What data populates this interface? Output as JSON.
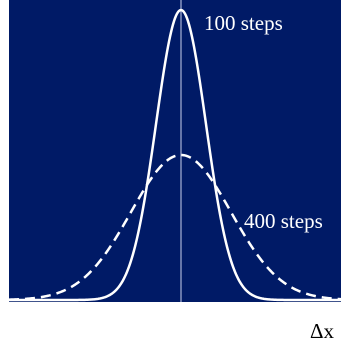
{
  "chart_data": {
    "type": "line",
    "xlabel": "Δx",
    "ylabel": "",
    "title": "",
    "grid": false,
    "legend": "none (series labelled inline)",
    "x_center": 0,
    "series": [
      {
        "name": "100 steps",
        "style": "solid",
        "color": "#ffffff",
        "peak": 1.0,
        "relative_width": 1.0,
        "label_placement": "upper right of peak"
      },
      {
        "name": "400 steps",
        "style": "dashed",
        "color": "#ffffff",
        "peak": 0.5,
        "relative_width": 2.0,
        "label_placement": "right flank"
      }
    ],
    "colors": {
      "plot_background": "#001a66",
      "curves": "#ffffff",
      "center_line": "#a9b4d6",
      "page_background": "#ffffff"
    }
  }
}
